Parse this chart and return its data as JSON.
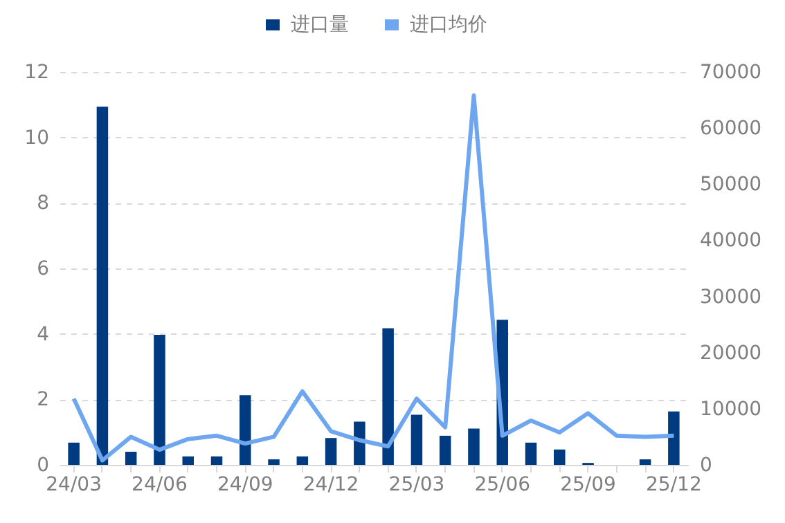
{
  "chart_data": {
    "type": "bar",
    "categories": [
      "24/03",
      null,
      null,
      "24/06",
      null,
      null,
      "24/09",
      null,
      null,
      "24/12",
      null,
      null,
      "25/03",
      null,
      null,
      "25/06",
      null,
      null,
      "25/09",
      null,
      null,
      "25/12"
    ],
    "series": [
      {
        "name": "进口量",
        "color": "#003a80",
        "values": [
          0.68,
          10.94,
          0.4,
          3.97,
          0.26,
          0.26,
          2.13,
          0.17,
          0.26,
          0.82,
          1.32,
          4.17,
          1.53,
          0.89,
          1.11,
          4.43,
          0.68,
          0.47,
          0.06,
          null,
          0.17,
          1.63
        ]
      },
      {
        "name": "进口均价",
        "type": "line",
        "axis": "y2",
        "color": "#6ea6f0",
        "values": [
          11800,
          800,
          5000,
          2700,
          4600,
          5200,
          3800,
          5000,
          13100,
          6000,
          4400,
          3300,
          11800,
          6700,
          65800,
          5200,
          7900,
          5800,
          9200,
          5200,
          5000,
          5200
        ]
      }
    ],
    "ylim": [
      0,
      12
    ],
    "yticks": [
      0,
      2,
      4,
      6,
      8,
      10,
      12
    ],
    "y2lim": [
      0,
      70000
    ],
    "y2ticks": [
      0,
      10000,
      20000,
      30000,
      40000,
      50000,
      60000,
      70000
    ],
    "grid": "y",
    "legend": "top",
    "marker": "none",
    "line_style": "solid"
  }
}
